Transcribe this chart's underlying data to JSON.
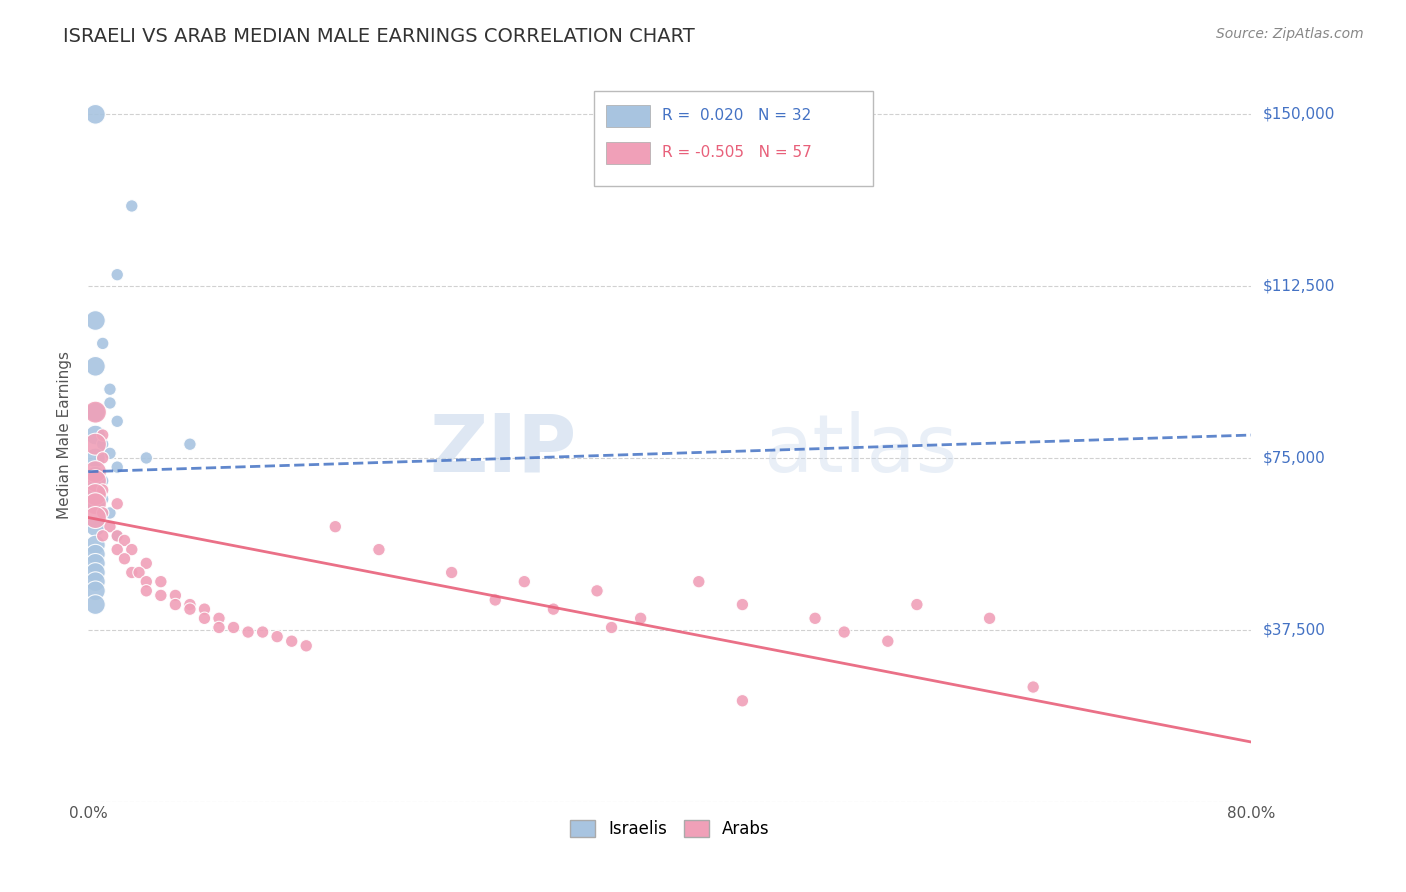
{
  "title": "ISRAELI VS ARAB MEDIAN MALE EARNINGS CORRELATION CHART",
  "source": "Source: ZipAtlas.com",
  "ylabel": "Median Male Earnings",
  "yticks": [
    0,
    37500,
    75000,
    112500,
    150000
  ],
  "ytick_labels": [
    "",
    "$37,500",
    "$75,000",
    "$112,500",
    "$150,000"
  ],
  "xlim": [
    0.0,
    0.8
  ],
  "ylim": [
    0,
    160000
  ],
  "watermark": "ZIPatlas",
  "israeli_color": "#a8c4e0",
  "arab_color": "#f0a0b8",
  "israeli_line_color": "#4472c4",
  "arab_line_color": "#e8607a",
  "israeli_scatter": [
    [
      0.005,
      150000
    ],
    [
      0.03,
      130000
    ],
    [
      0.02,
      115000
    ],
    [
      0.005,
      105000
    ],
    [
      0.01,
      100000
    ],
    [
      0.005,
      95000
    ],
    [
      0.015,
      90000
    ],
    [
      0.015,
      87000
    ],
    [
      0.005,
      85000
    ],
    [
      0.02,
      83000
    ],
    [
      0.005,
      80000
    ],
    [
      0.01,
      78000
    ],
    [
      0.015,
      76000
    ],
    [
      0.005,
      75000
    ],
    [
      0.02,
      73000
    ],
    [
      0.005,
      71000
    ],
    [
      0.01,
      70000
    ],
    [
      0.005,
      68000
    ],
    [
      0.01,
      66000
    ],
    [
      0.005,
      65000
    ],
    [
      0.015,
      63000
    ],
    [
      0.005,
      60000
    ],
    [
      0.02,
      58000
    ],
    [
      0.005,
      56000
    ],
    [
      0.005,
      54000
    ],
    [
      0.005,
      52000
    ],
    [
      0.005,
      50000
    ],
    [
      0.005,
      48000
    ],
    [
      0.005,
      46000
    ],
    [
      0.005,
      43000
    ],
    [
      0.04,
      75000
    ],
    [
      0.07,
      78000
    ]
  ],
  "arab_scatter": [
    [
      0.005,
      85000
    ],
    [
      0.01,
      80000
    ],
    [
      0.005,
      78000
    ],
    [
      0.01,
      75000
    ],
    [
      0.005,
      72000
    ],
    [
      0.005,
      70000
    ],
    [
      0.01,
      68000
    ],
    [
      0.005,
      67000
    ],
    [
      0.005,
      65000
    ],
    [
      0.01,
      63000
    ],
    [
      0.005,
      62000
    ],
    [
      0.02,
      65000
    ],
    [
      0.015,
      60000
    ],
    [
      0.01,
      58000
    ],
    [
      0.02,
      58000
    ],
    [
      0.025,
      57000
    ],
    [
      0.02,
      55000
    ],
    [
      0.03,
      55000
    ],
    [
      0.025,
      53000
    ],
    [
      0.04,
      52000
    ],
    [
      0.03,
      50000
    ],
    [
      0.035,
      50000
    ],
    [
      0.04,
      48000
    ],
    [
      0.05,
      48000
    ],
    [
      0.04,
      46000
    ],
    [
      0.05,
      45000
    ],
    [
      0.06,
      45000
    ],
    [
      0.06,
      43000
    ],
    [
      0.07,
      43000
    ],
    [
      0.07,
      42000
    ],
    [
      0.08,
      42000
    ],
    [
      0.08,
      40000
    ],
    [
      0.09,
      40000
    ],
    [
      0.09,
      38000
    ],
    [
      0.1,
      38000
    ],
    [
      0.11,
      37000
    ],
    [
      0.12,
      37000
    ],
    [
      0.13,
      36000
    ],
    [
      0.14,
      35000
    ],
    [
      0.15,
      34000
    ],
    [
      0.17,
      60000
    ],
    [
      0.2,
      55000
    ],
    [
      0.25,
      50000
    ],
    [
      0.3,
      48000
    ],
    [
      0.35,
      46000
    ],
    [
      0.28,
      44000
    ],
    [
      0.32,
      42000
    ],
    [
      0.38,
      40000
    ],
    [
      0.36,
      38000
    ],
    [
      0.42,
      48000
    ],
    [
      0.45,
      43000
    ],
    [
      0.5,
      40000
    ],
    [
      0.52,
      37000
    ],
    [
      0.55,
      35000
    ],
    [
      0.57,
      43000
    ],
    [
      0.62,
      40000
    ],
    [
      0.65,
      25000
    ],
    [
      0.45,
      22000
    ]
  ],
  "background_color": "#ffffff",
  "grid_color": "#cccccc",
  "plot_bg_color": "#ffffff"
}
